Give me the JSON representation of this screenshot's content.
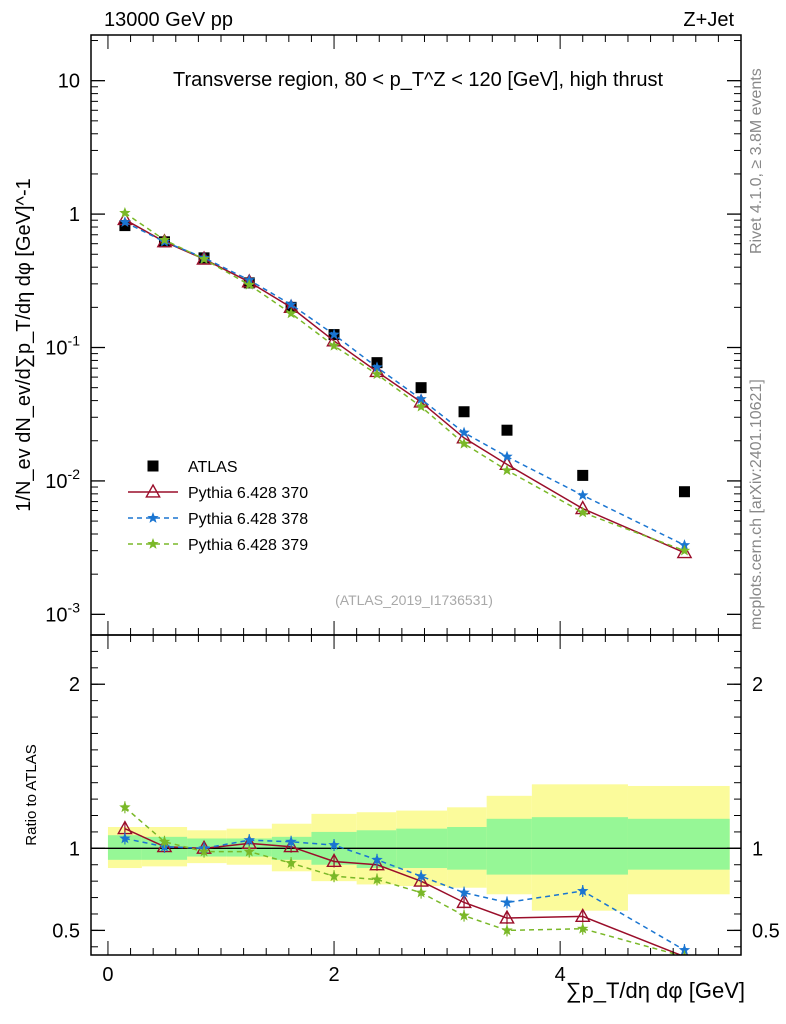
{
  "header": {
    "left": "13000 GeV pp",
    "right": "Z+Jet"
  },
  "side_labels": {
    "rivet": "Rivet 4.1.0, ≥ 3.8M events",
    "mcplots": "mcplots.cern.ch [arXiv:2401.10621]"
  },
  "analysis_id": "(ATLAS_2019_I1736531)",
  "colors": {
    "data": "#000000",
    "p370": "#9a0e2a",
    "p378": "#1a75d1",
    "p379": "#7ab828",
    "band_inner": "#96f796",
    "band_outer": "#fbfb9b"
  },
  "chart_data": [
    {
      "type": "scatter",
      "title": "Transverse region, 80 < p_T^Z < 120 [GeV], high thrust",
      "ylabel": "1/N_ev dN_ev/d∑p_T/dη dφ [GeV]^-1",
      "xlim": [
        -0.15,
        5.6
      ],
      "ylim": [
        0.0007,
        22
      ],
      "yscale": "log",
      "yticks": [
        {
          "v": 0.001,
          "label": "10^-3"
        },
        {
          "v": 0.01,
          "label": "10^-2"
        },
        {
          "v": 0.1,
          "label": "10^-1"
        },
        {
          "v": 1,
          "label": "1"
        },
        {
          "v": 10,
          "label": "10"
        }
      ],
      "x": [
        0.15,
        0.5,
        0.85,
        1.25,
        1.62,
        2.0,
        2.38,
        2.77,
        3.15,
        3.53,
        4.2,
        5.1
      ],
      "series": [
        {
          "name": "ATLAS",
          "values": [
            0.82,
            0.62,
            0.47,
            0.305,
            0.2,
            0.125,
            0.077,
            0.05,
            0.033,
            0.024,
            0.011,
            0.0083
          ]
        },
        {
          "name": "Pythia 6.428 370",
          "values": [
            0.91,
            0.62,
            0.46,
            0.31,
            0.2,
            0.112,
            0.066,
            0.039,
            0.021,
            0.0133,
            0.0062,
            0.0029
          ]
        },
        {
          "name": "Pythia 6.428 378",
          "values": [
            0.87,
            0.62,
            0.47,
            0.32,
            0.21,
            0.125,
            0.071,
            0.041,
            0.023,
            0.0152,
            0.0078,
            0.0033
          ]
        },
        {
          "name": "Pythia 6.428 379",
          "values": [
            1.02,
            0.64,
            0.46,
            0.295,
            0.18,
            0.103,
            0.063,
            0.036,
            0.019,
            0.012,
            0.0058,
            0.003
          ]
        }
      ],
      "legend": [
        "ATLAS",
        "Pythia 6.428 370",
        "Pythia 6.428 378",
        "Pythia 6.428 379"
      ]
    },
    {
      "type": "line",
      "ylabel": "Ratio to ATLAS",
      "xlabel": "∑p_T/dη dφ [GeV]",
      "xlim": [
        -0.15,
        5.6
      ],
      "ylim": [
        0.35,
        2.3
      ],
      "xticks": [
        0,
        2,
        4
      ],
      "yticks": [
        0.5,
        1,
        2
      ],
      "bin_edges": [
        0.0,
        0.3,
        0.7,
        1.05,
        1.45,
        1.8,
        2.2,
        2.55,
        3.0,
        3.35,
        3.75,
        4.6,
        5.5
      ],
      "band_inner": [
        [
          0.93,
          1.08
        ],
        [
          0.93,
          1.07
        ],
        [
          0.95,
          1.06
        ],
        [
          0.95,
          1.06
        ],
        [
          0.93,
          1.07
        ],
        [
          0.9,
          1.1
        ],
        [
          0.88,
          1.11
        ],
        [
          0.88,
          1.12
        ],
        [
          0.87,
          1.13
        ],
        [
          0.84,
          1.18
        ],
        [
          0.84,
          1.19
        ],
        [
          0.87,
          1.18
        ]
      ],
      "band_outer": [
        [
          0.88,
          1.13
        ],
        [
          0.89,
          1.13
        ],
        [
          0.91,
          1.11
        ],
        [
          0.9,
          1.12
        ],
        [
          0.86,
          1.15
        ],
        [
          0.8,
          1.21
        ],
        [
          0.78,
          1.22
        ],
        [
          0.77,
          1.23
        ],
        [
          0.76,
          1.25
        ],
        [
          0.72,
          1.32
        ],
        [
          0.62,
          1.39
        ],
        [
          0.72,
          1.38
        ]
      ],
      "series": [
        {
          "name": "Pythia 6.428 370",
          "values": [
            1.12,
            1.01,
            1.0,
            1.03,
            1.01,
            0.92,
            0.9,
            0.8,
            0.67,
            0.575,
            0.585,
            0.34
          ]
        },
        {
          "name": "Pythia 6.428 378",
          "values": [
            1.06,
            1.01,
            1.0,
            1.05,
            1.04,
            1.02,
            0.93,
            0.83,
            0.73,
            0.67,
            0.74,
            0.38
          ]
        },
        {
          "name": "Pythia 6.428 379",
          "values": [
            1.25,
            1.04,
            0.98,
            0.98,
            0.91,
            0.83,
            0.81,
            0.73,
            0.59,
            0.5,
            0.51,
            0.34
          ]
        }
      ]
    }
  ]
}
